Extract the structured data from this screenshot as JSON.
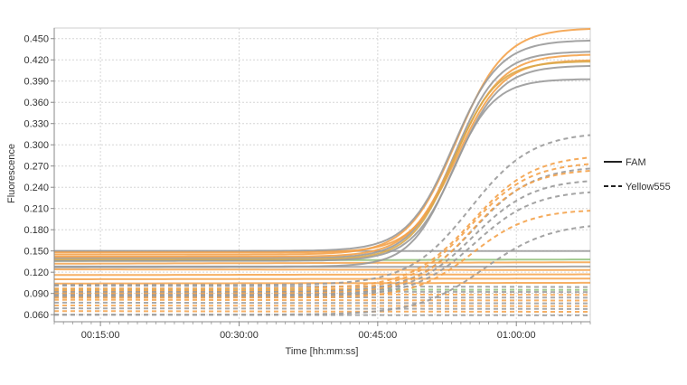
{
  "chart_data": {
    "type": "line",
    "xlabel": "Time [hh:mm:ss]",
    "ylabel": "Fluorescence",
    "x_unit": "minutes",
    "xlim": [
      10,
      68
    ],
    "ylim": [
      0.05,
      0.465
    ],
    "x_ticks": [
      {
        "value": 15,
        "label": "00:15:00"
      },
      {
        "value": 30,
        "label": "00:30:00"
      },
      {
        "value": 45,
        "label": "00:45:00"
      },
      {
        "value": 60,
        "label": "01:00:00"
      }
    ],
    "y_ticks": [
      {
        "value": 0.06,
        "label": "0.060"
      },
      {
        "value": 0.09,
        "label": "0.090"
      },
      {
        "value": 0.12,
        "label": "0.120"
      },
      {
        "value": 0.15,
        "label": "0.150"
      },
      {
        "value": 0.18,
        "label": "0.180"
      },
      {
        "value": 0.21,
        "label": "0.210"
      },
      {
        "value": 0.24,
        "label": "0.240"
      },
      {
        "value": 0.27,
        "label": "0.270"
      },
      {
        "value": 0.3,
        "label": "0.300"
      },
      {
        "value": 0.33,
        "label": "0.330"
      },
      {
        "value": 0.36,
        "label": "0.360"
      },
      {
        "value": 0.39,
        "label": "0.390"
      },
      {
        "value": 0.42,
        "label": "0.420"
      },
      {
        "value": 0.45,
        "label": "0.450"
      }
    ],
    "grid": true,
    "legend": {
      "placement": "right",
      "entries": [
        {
          "label": "FAM",
          "style": "solid"
        },
        {
          "label": "Yellow555",
          "style": "dashed"
        }
      ]
    },
    "colors": {
      "orange": "#f4a24a",
      "gray": "#9a9a9a",
      "gold": "#d9a84a",
      "green": "#8fbf7a"
    },
    "sigmoid_series": [
      {
        "dye": "FAM",
        "color": "#f4a24a",
        "base": 0.145,
        "top": 0.465,
        "mid": 53.5,
        "k": 0.38
      },
      {
        "dye": "FAM",
        "color": "#9a9a9a",
        "base": 0.15,
        "top": 0.448,
        "mid": 53.2,
        "k": 0.4
      },
      {
        "dye": "FAM",
        "color": "#9a9a9a",
        "base": 0.14,
        "top": 0.432,
        "mid": 53.3,
        "k": 0.42
      },
      {
        "dye": "FAM",
        "color": "#f4a24a",
        "base": 0.142,
        "top": 0.428,
        "mid": 53.4,
        "k": 0.4
      },
      {
        "dye": "FAM",
        "color": "#f4a24a",
        "base": 0.148,
        "top": 0.42,
        "mid": 53.6,
        "k": 0.41
      },
      {
        "dye": "FAM",
        "color": "#d9a84a",
        "base": 0.138,
        "top": 0.418,
        "mid": 53.2,
        "k": 0.43
      },
      {
        "dye": "FAM",
        "color": "#9a9a9a",
        "base": 0.136,
        "top": 0.412,
        "mid": 53.5,
        "k": 0.42
      },
      {
        "dye": "FAM",
        "color": "#9a9a9a",
        "base": 0.128,
        "top": 0.393,
        "mid": 53.0,
        "k": 0.44
      },
      {
        "dye": "Yellow555",
        "color": "#9a9a9a",
        "base": 0.102,
        "top": 0.318,
        "mid": 55.0,
        "k": 0.3
      },
      {
        "dye": "Yellow555",
        "color": "#f4a24a",
        "base": 0.097,
        "top": 0.286,
        "mid": 55.2,
        "k": 0.3
      },
      {
        "dye": "Yellow555",
        "color": "#f4a24a",
        "base": 0.094,
        "top": 0.276,
        "mid": 55.0,
        "k": 0.31
      },
      {
        "dye": "Yellow555",
        "color": "#9a9a9a",
        "base": 0.092,
        "top": 0.27,
        "mid": 55.4,
        "k": 0.31
      },
      {
        "dye": "Yellow555",
        "color": "#f4a24a",
        "base": 0.09,
        "top": 0.266,
        "mid": 55.1,
        "k": 0.32
      },
      {
        "dye": "Yellow555",
        "color": "#9a9a9a",
        "base": 0.088,
        "top": 0.252,
        "mid": 55.3,
        "k": 0.31
      },
      {
        "dye": "Yellow555",
        "color": "#9a9a9a",
        "base": 0.086,
        "top": 0.236,
        "mid": 55.5,
        "k": 0.31
      },
      {
        "dye": "Yellow555",
        "color": "#f4a24a",
        "base": 0.084,
        "top": 0.209,
        "mid": 55.2,
        "k": 0.32
      },
      {
        "dye": "Yellow555",
        "color": "#9a9a9a",
        "base": 0.06,
        "top": 0.19,
        "mid": 56.5,
        "k": 0.28
      }
    ],
    "flat_series": [
      {
        "dye": "FAM",
        "color": "#9a9a9a",
        "start": 0.15,
        "end": 0.15
      },
      {
        "dye": "FAM",
        "color": "#8fbf7a",
        "start": 0.136,
        "end": 0.138
      },
      {
        "dye": "FAM",
        "color": "#f4a24a",
        "start": 0.132,
        "end": 0.134
      },
      {
        "dye": "FAM",
        "color": "#9a9a9a",
        "start": 0.127,
        "end": 0.128
      },
      {
        "dye": "FAM",
        "color": "#f4a24a",
        "start": 0.124,
        "end": 0.123
      },
      {
        "dye": "FAM",
        "color": "#f4a24a",
        "start": 0.116,
        "end": 0.117
      },
      {
        "dye": "FAM",
        "color": "#f4a24a",
        "start": 0.11,
        "end": 0.111
      },
      {
        "dye": "FAM",
        "color": "#f4a24a",
        "start": 0.104,
        "end": 0.105
      },
      {
        "dye": "Yellow555",
        "color": "#9a9a9a",
        "start": 0.101,
        "end": 0.099
      },
      {
        "dye": "Yellow555",
        "color": "#8fbf7a",
        "start": 0.096,
        "end": 0.095
      },
      {
        "dye": "Yellow555",
        "color": "#9a9a9a",
        "start": 0.093,
        "end": 0.092
      },
      {
        "dye": "Yellow555",
        "color": "#f4a24a",
        "start": 0.089,
        "end": 0.088
      },
      {
        "dye": "Yellow555",
        "color": "#9a9a9a",
        "start": 0.085,
        "end": 0.084
      },
      {
        "dye": "Yellow555",
        "color": "#f4a24a",
        "start": 0.081,
        "end": 0.08
      },
      {
        "dye": "Yellow555",
        "color": "#9a9a9a",
        "start": 0.077,
        "end": 0.076
      },
      {
        "dye": "Yellow555",
        "color": "#f4a24a",
        "start": 0.073,
        "end": 0.072
      },
      {
        "dye": "Yellow555",
        "color": "#9a9a9a",
        "start": 0.069,
        "end": 0.068
      },
      {
        "dye": "Yellow555",
        "color": "#f4a24a",
        "start": 0.065,
        "end": 0.064
      },
      {
        "dye": "Yellow555",
        "color": "#9a9a9a",
        "start": 0.06,
        "end": 0.059
      }
    ]
  }
}
